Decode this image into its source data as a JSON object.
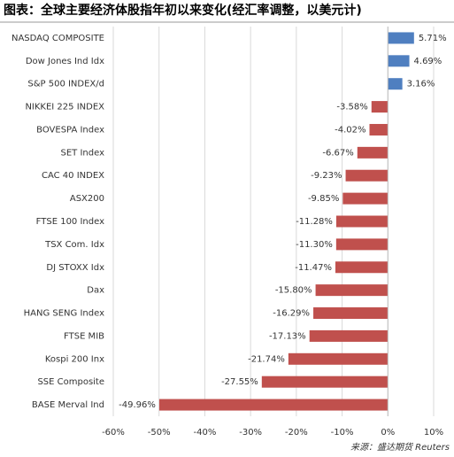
{
  "chart_data": {
    "type": "bar",
    "orientation": "horizontal",
    "title": "图表：全球主要经济体股指年初以来变化(经汇率调整，以美元计)",
    "source": "来源：盛达期货 Reuters",
    "categories": [
      "NASDAQ COMPOSITE",
      "Dow Jones Ind Idx",
      "S&P 500 INDEX/d",
      "NIKKEI 225 INDEX",
      "BOVESPA Index",
      "SET Index",
      "CAC 40 INDEX",
      "ASX200",
      "FTSE 100 Index",
      "TSX Com. Idx",
      "DJ STOXX Idx",
      "Dax",
      "HANG SENG Index",
      "FTSE MIB",
      "Kospi 200 Inx",
      "SSE Composite",
      "BASE Merval Ind"
    ],
    "values": [
      5.71,
      4.69,
      3.16,
      -3.58,
      -4.02,
      -6.67,
      -9.23,
      -9.85,
      -11.28,
      -11.3,
      -11.47,
      -15.8,
      -16.29,
      -17.13,
      -21.74,
      -27.55,
      -49.96
    ],
    "value_labels": [
      "5.71%",
      "4.69%",
      "3.16%",
      "-3.58%",
      "-4.02%",
      "-6.67%",
      "-9.23%",
      "-9.85%",
      "-11.28%",
      "-11.30%",
      "-11.47%",
      "-15.80%",
      "-16.29%",
      "-17.13%",
      "-21.74%",
      "-27.55%",
      "-49.96%"
    ],
    "positive_color": "#4f7fc0",
    "negative_color": "#c0504d",
    "xlim": [
      -60,
      10
    ],
    "xticks": [
      {
        "value": -60,
        "label": "-60%"
      },
      {
        "value": -50,
        "label": "-50%"
      },
      {
        "value": -40,
        "label": "-40%"
      },
      {
        "value": -30,
        "label": "-30%"
      },
      {
        "value": -20,
        "label": "-20%"
      },
      {
        "value": -10,
        "label": "-10%"
      },
      {
        "value": 0,
        "label": "0%"
      },
      {
        "value": 10,
        "label": "10%"
      }
    ],
    "grid": true
  }
}
